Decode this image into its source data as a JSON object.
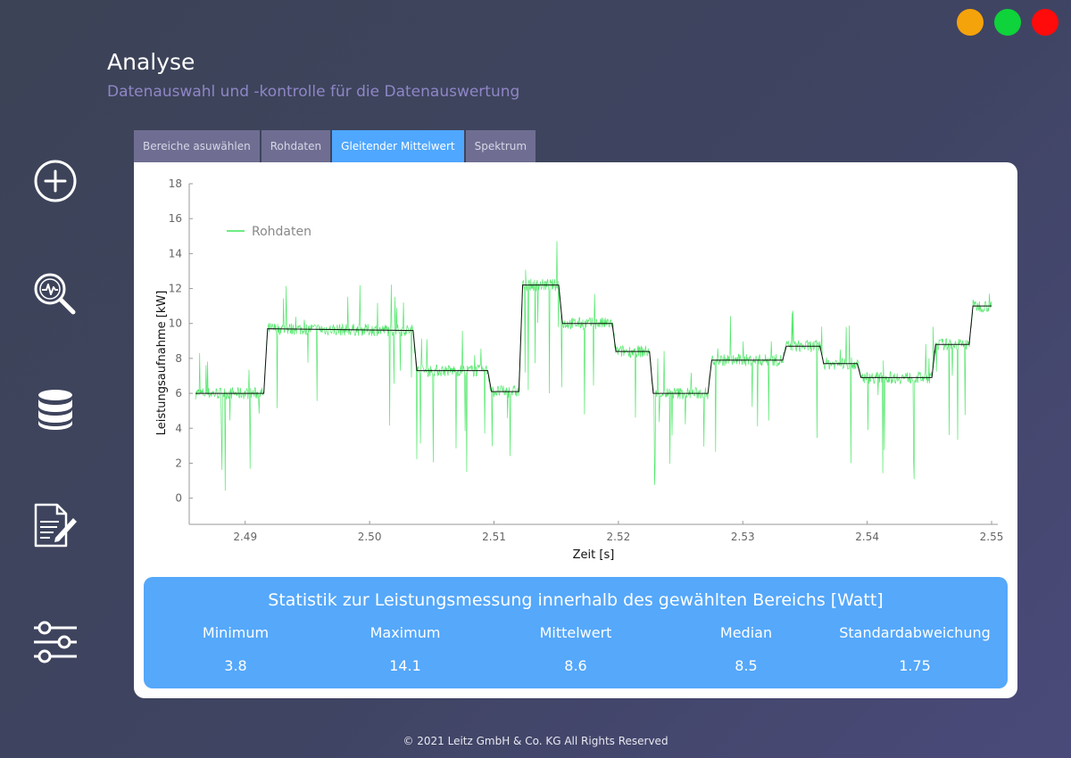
{
  "window": {
    "buttons": [
      {
        "name": "minimize",
        "color": "#f5a30b"
      },
      {
        "name": "maximize",
        "color": "#0ed33a"
      },
      {
        "name": "close",
        "color": "#ff0b0b"
      }
    ]
  },
  "header": {
    "title": "Analyse",
    "subtitle": "Datenauswahl und -kontrolle für die Datenauswertung"
  },
  "sidebar": {
    "items": [
      {
        "icon": "plus-circle-icon"
      },
      {
        "icon": "magnifier-analysis-icon"
      },
      {
        "icon": "database-icon"
      },
      {
        "icon": "document-edit-icon"
      },
      {
        "icon": "sliders-icon"
      }
    ]
  },
  "tabs": [
    {
      "label": "Bereiche asuwählen",
      "active": false
    },
    {
      "label": "Rohdaten",
      "active": false
    },
    {
      "label": "Gleitender Mittelwert",
      "active": true
    },
    {
      "label": "Spektrum",
      "active": false
    }
  ],
  "chart_data": {
    "type": "line",
    "xlabel": "Zeit [s]",
    "ylabel": "Leistungsaufnahme [kW]",
    "xlim": [
      2.4855,
      2.5505
    ],
    "ylim": [
      -1.5,
      18
    ],
    "xticks": [
      2.49,
      2.5,
      2.51,
      2.52,
      2.53,
      2.54,
      2.55
    ],
    "yticks": [
      0,
      2,
      4,
      6,
      8,
      10,
      12,
      14,
      16,
      18
    ],
    "grid": false,
    "legend_position": "top-left",
    "series": [
      {
        "name": "Rohdaten",
        "color": "#3ee65a",
        "x": [
          2.486,
          2.4915,
          2.4918,
          2.5035,
          2.5038,
          2.5095,
          2.5098,
          2.512,
          2.5123,
          2.5152,
          2.5155,
          2.5195,
          2.5198,
          2.5225,
          2.5228,
          2.5272,
          2.5275,
          2.5332,
          2.5335,
          2.5362,
          2.5365,
          2.5392,
          2.5395,
          2.5452,
          2.5455,
          2.5482,
          2.5485,
          2.55
        ],
        "y": [
          6.0,
          6.0,
          9.7,
          9.6,
          7.3,
          7.3,
          6.1,
          6.1,
          12.2,
          12.2,
          10.0,
          10.0,
          8.4,
          8.4,
          6.0,
          6.0,
          7.9,
          7.9,
          8.7,
          8.7,
          7.7,
          7.7,
          6.9,
          6.9,
          8.8,
          8.8,
          11.0,
          11.0
        ]
      },
      {
        "name": "Gleitender Mittelwert",
        "color": "#111111",
        "x": [
          2.486,
          2.4915,
          2.4918,
          2.5035,
          2.5038,
          2.5095,
          2.5098,
          2.512,
          2.5123,
          2.5152,
          2.5155,
          2.5195,
          2.5198,
          2.5225,
          2.5228,
          2.5272,
          2.5275,
          2.5332,
          2.5335,
          2.5362,
          2.5365,
          2.5392,
          2.5395,
          2.5452,
          2.5455,
          2.5482,
          2.5485,
          2.55
        ],
        "y": [
          6.0,
          6.0,
          9.7,
          9.6,
          7.3,
          7.3,
          6.1,
          6.1,
          12.2,
          12.2,
          10.0,
          10.0,
          8.4,
          8.4,
          6.0,
          6.0,
          7.9,
          7.9,
          8.7,
          8.7,
          7.7,
          7.7,
          6.9,
          6.9,
          8.8,
          8.8,
          11.0,
          11.0
        ]
      }
    ]
  },
  "stats": {
    "title": "Statistik zur Leistungsmessung innerhalb des gewählten Bereichs [Watt]",
    "items": [
      {
        "label": "Minimum",
        "value": "3.8"
      },
      {
        "label": "Maximum",
        "value": "14.1"
      },
      {
        "label": "Mittelwert",
        "value": "8.6"
      },
      {
        "label": "Median",
        "value": "8.5"
      },
      {
        "label": "Standardabweichung",
        "value": "1.75"
      }
    ]
  },
  "footer": {
    "text": "© 2021 Leitz GmbH & Co. KG All Rights Reserved"
  }
}
